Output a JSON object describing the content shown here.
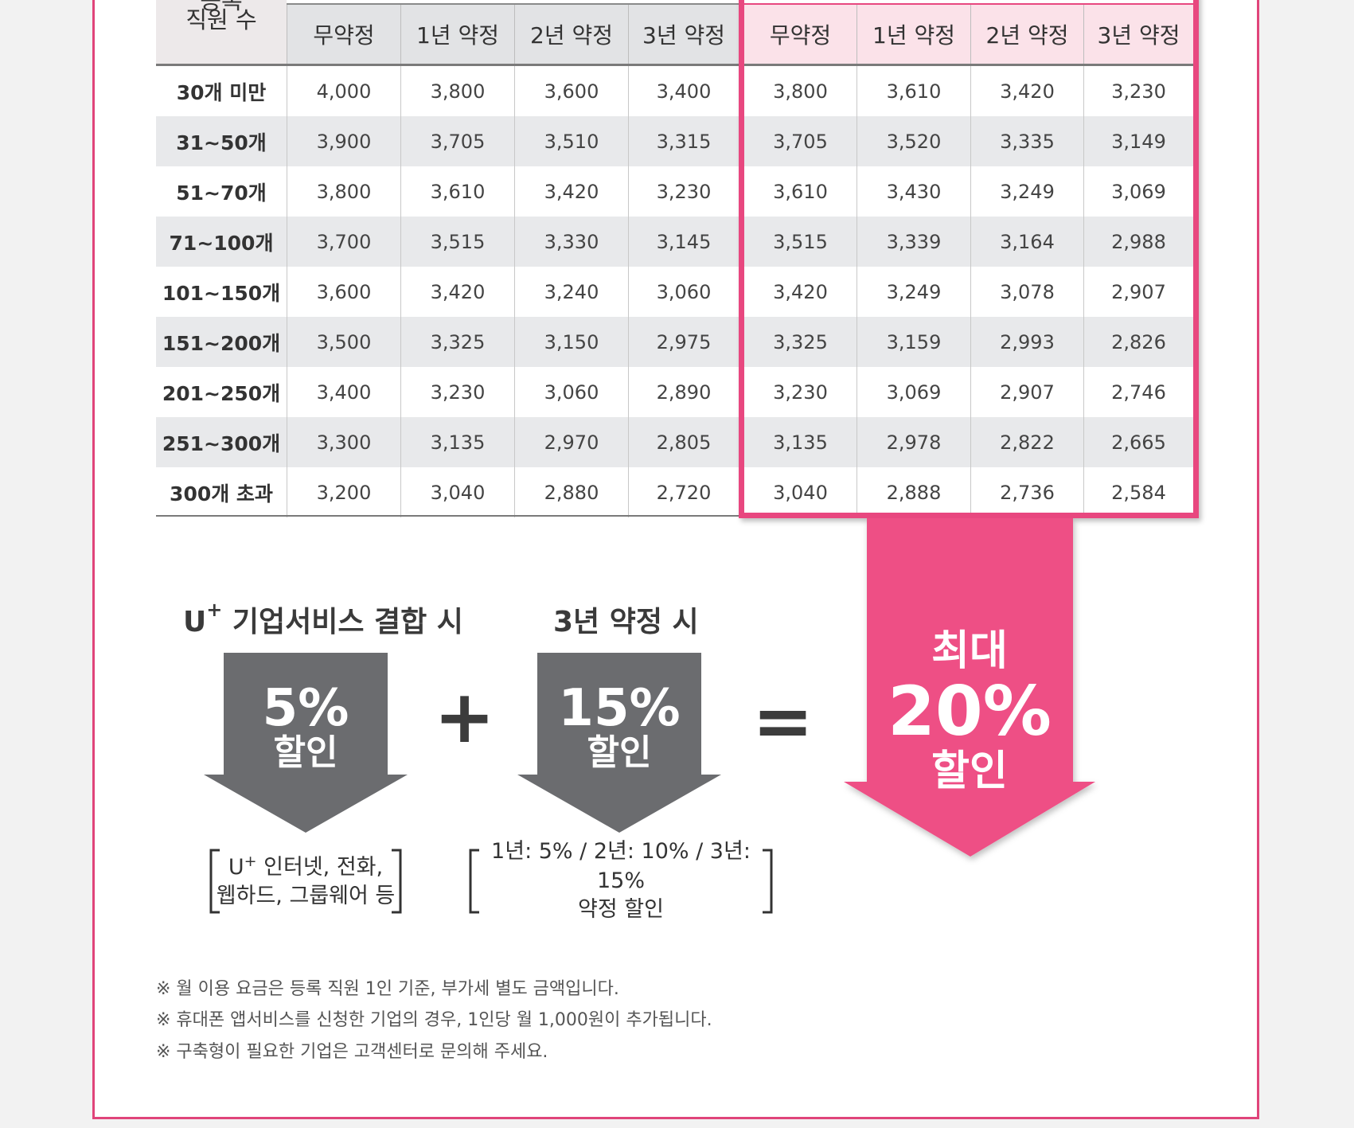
{
  "table": {
    "corner_top_fragment": "등록",
    "corner_label": "직원 수",
    "group_headers": [
      "무약정",
      "1년 약정",
      "2년 약정",
      "3년 약정"
    ],
    "rows": [
      {
        "label": "30개 미만",
        "base": [
          "4,000",
          "3,800",
          "3,600",
          "3,400"
        ],
        "combined": [
          "3,800",
          "3,610",
          "3,420",
          "3,230"
        ]
      },
      {
        "label": "31~50개",
        "base": [
          "3,900",
          "3,705",
          "3,510",
          "3,315"
        ],
        "combined": [
          "3,705",
          "3,520",
          "3,335",
          "3,149"
        ]
      },
      {
        "label": "51~70개",
        "base": [
          "3,800",
          "3,610",
          "3,420",
          "3,230"
        ],
        "combined": [
          "3,610",
          "3,430",
          "3,249",
          "3,069"
        ]
      },
      {
        "label": "71~100개",
        "base": [
          "3,700",
          "3,515",
          "3,330",
          "3,145"
        ],
        "combined": [
          "3,515",
          "3,339",
          "3,164",
          "2,988"
        ]
      },
      {
        "label": "101~150개",
        "base": [
          "3,600",
          "3,420",
          "3,240",
          "3,060"
        ],
        "combined": [
          "3,420",
          "3,249",
          "3,078",
          "2,907"
        ]
      },
      {
        "label": "151~200개",
        "base": [
          "3,500",
          "3,325",
          "3,150",
          "2,975"
        ],
        "combined": [
          "3,325",
          "3,159",
          "2,993",
          "2,826"
        ]
      },
      {
        "label": "201~250개",
        "base": [
          "3,400",
          "3,230",
          "3,060",
          "2,890"
        ],
        "combined": [
          "3,230",
          "3,069",
          "2,907",
          "2,746"
        ]
      },
      {
        "label": "251~300개",
        "base": [
          "3,300",
          "3,135",
          "2,970",
          "2,805"
        ],
        "combined": [
          "3,135",
          "2,978",
          "2,822",
          "2,665"
        ]
      },
      {
        "label": "300개 초과",
        "base": [
          "3,200",
          "3,040",
          "2,880",
          "2,720"
        ],
        "combined": [
          "3,040",
          "2,888",
          "2,736",
          "2,584"
        ]
      }
    ]
  },
  "discount": {
    "combo_title_prefix": "U",
    "combo_title_sup": "+",
    "combo_title_rest": " 기업서비스 결합 시",
    "contract_title": "3년 약정 시",
    "combo_pct": "5%",
    "combo_label": "할인",
    "contract_pct": "15%",
    "contract_label": "할인",
    "plus": "+",
    "equals": "=",
    "max_title": "최대",
    "max_pct": "20%",
    "max_label": "할인",
    "combo_note_prefix": "U",
    "combo_note_sup": "+",
    "combo_note_line1_rest": " 인터넷, 전화,",
    "combo_note_line2": "웹하드, 그룹웨어 등",
    "contract_note_line1": "1년: 5% / 2년: 10% / 3년: 15%",
    "contract_note_line2": "약정 할인"
  },
  "notes": [
    "※ 월 이용 요금은 등록 직원 1인 기준, 부가세 별도 금액입니다.",
    "※ 휴대폰 앱서비스를 신청한 기업의 경우, 1인당 월 1,000원이 추가됩니다.",
    "※ 구축형이 필요한 기업은 고객센터로 문의해 주세요."
  ],
  "colors": {
    "accent_pink": "#e8477f",
    "arrow_gray": "#6b6c6f",
    "header_gray": "#e2e3e5",
    "header_pink": "#fbe2e9",
    "stripe_gray": "#e8e9eb"
  }
}
